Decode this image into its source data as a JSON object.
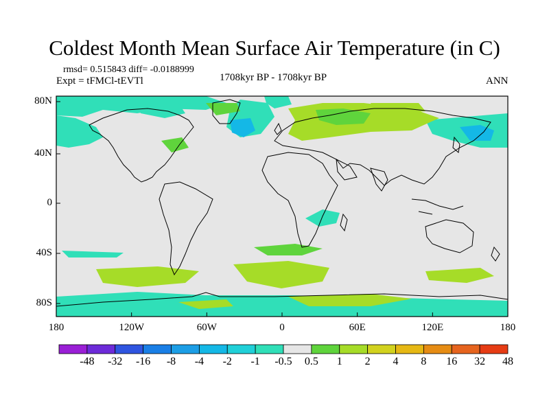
{
  "title": "Coldest Month Mean Surface Air Temperature (in C)",
  "stats": "rmsd= 0.515843 diff= -0.0188999",
  "experiment": "Expt = tFMCl-tEVTl",
  "period": "1708kyr BP - 1708kyr BP",
  "season": "ANN",
  "map": {
    "projection": "cylindrical equidistant",
    "lat_labels": [
      "80N",
      "40N",
      "0",
      "40S",
      "80S"
    ],
    "lon_labels": [
      "180",
      "120W",
      "60W",
      "0",
      "60E",
      "120E",
      "180"
    ],
    "background_color": "#e6e6e6"
  },
  "colorbar": {
    "labels": [
      "-48",
      "-32",
      "-16",
      "-8",
      "-4",
      "-2",
      "-1",
      "-0.5",
      "0.5",
      "1",
      "2",
      "4",
      "8",
      "16",
      "32",
      "48"
    ],
    "colors": [
      "#9a1fd6",
      "#6d2bd9",
      "#2f55e0",
      "#1a7fe6",
      "#1c9ee6",
      "#14b8e6",
      "#20d0d8",
      "#30dfb8",
      "#e6e6e6",
      "#5fd43c",
      "#a6dc28",
      "#d2d21e",
      "#e6b814",
      "#e68c14",
      "#e6641e",
      "#e63c14"
    ]
  }
}
